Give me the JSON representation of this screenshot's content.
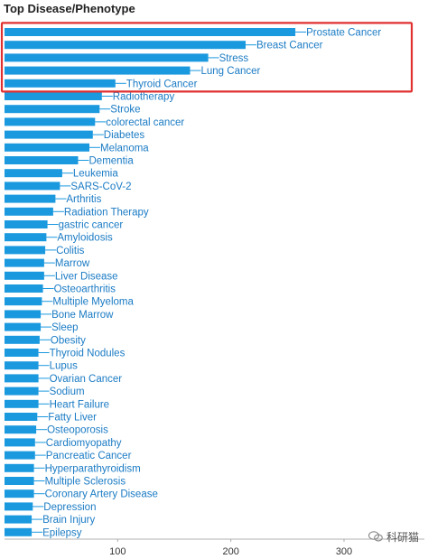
{
  "page_title": "Top Disease/Phenotype",
  "watermark": "科研猫",
  "colors": {
    "bar": "#1b99df",
    "label": "#1a7bc4",
    "highlight_box": "#e03030",
    "axis": "#999999"
  },
  "chart_data": {
    "type": "bar",
    "orientation": "horizontal",
    "title": "Top Disease/Phenotype",
    "xlabel": "",
    "ylabel": "",
    "xlim": [
      0,
      335
    ],
    "xticks": [
      100,
      200,
      300
    ],
    "grid": false,
    "highlighted_categories": [
      "Prostate Cancer",
      "Breast Cancer",
      "Stress",
      "Lung Cancer",
      "Thyroid Cancer"
    ],
    "categories": [
      "Prostate Cancer",
      "Breast Cancer",
      "Stress",
      "Lung Cancer",
      "Thyroid Cancer",
      "Radiotherapy",
      "Stroke",
      "colorectal cancer",
      "Diabetes",
      "Melanoma",
      "Dementia",
      "Leukemia",
      "SARS-CoV-2",
      "Arthritis",
      "Radiation Therapy",
      "gastric cancer",
      "Amyloidosis",
      "Colitis",
      "Marrow",
      "Liver Disease",
      "Osteoarthritis",
      "Multiple Myeloma",
      "Bone Marrow",
      "Sleep",
      "Obesity",
      "Thyroid Nodules",
      "Lupus",
      "Ovarian Cancer",
      "Sodium",
      "Heart Failure",
      "Fatty Liver",
      "Osteoporosis",
      "Cardiomyopathy",
      "Pancreatic Cancer",
      "Hyperparathyroidism",
      "Multiple Sclerosis",
      "Coronary Artery Disease",
      "Depression",
      "Brain Injury",
      "Epilepsy"
    ],
    "values": [
      257,
      213,
      180,
      164,
      98,
      86,
      84,
      80,
      78,
      75,
      65,
      51,
      49,
      45,
      43,
      38,
      37,
      36,
      35,
      35,
      34,
      33,
      32,
      32,
      31,
      30,
      30,
      30,
      30,
      30,
      29,
      28,
      27,
      27,
      26,
      26,
      26,
      25,
      24,
      24
    ]
  }
}
